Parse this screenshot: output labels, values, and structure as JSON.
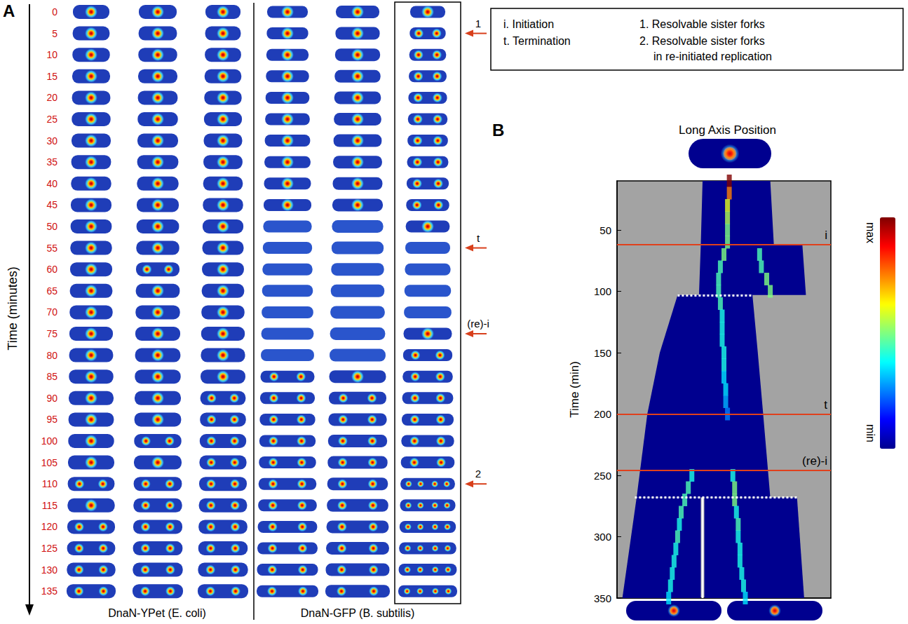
{
  "legend_box": {
    "left": [
      "i. Initiation",
      "t. Termination"
    ],
    "right": [
      "1. Resolvable sister forks",
      "2. Resolvable sister forks in re-initiated replication"
    ]
  },
  "panel_a": {
    "letter": "A",
    "axis_title": "Time (minutes)",
    "times": [
      0,
      5,
      10,
      15,
      20,
      25,
      30,
      35,
      40,
      45,
      50,
      55,
      60,
      65,
      70,
      75,
      80,
      85,
      90,
      95,
      100,
      105,
      110,
      115,
      120,
      125,
      130,
      135
    ],
    "groups": [
      {
        "label": "DnaN-YPet (E. coli)",
        "columns": [
          {
            "foci": [
              1,
              1,
              1,
              1,
              1,
              1,
              1,
              1,
              1,
              1,
              1,
              1,
              1,
              1,
              1,
              1,
              1,
              1,
              1,
              1,
              1,
              1,
              2,
              1,
              2,
              2,
              2,
              2
            ]
          },
          {
            "foci": [
              1,
              1,
              1,
              1,
              1,
              1,
              1,
              1,
              1,
              1,
              1,
              1,
              2,
              1,
              1,
              1,
              1,
              1,
              1,
              1,
              2,
              1,
              2,
              2,
              2,
              2,
              2,
              2
            ]
          },
          {
            "foci": [
              1,
              1,
              1,
              1,
              1,
              1,
              1,
              1,
              1,
              1,
              1,
              1,
              1,
              1,
              1,
              1,
              1,
              1,
              2,
              2,
              2,
              2,
              2,
              2,
              2,
              2,
              2,
              2
            ]
          }
        ]
      },
      {
        "label": "DnaN-GFP (B. subtilis)",
        "columns": [
          {
            "foci": [
              1,
              1,
              1,
              1,
              1,
              1,
              1,
              1,
              1,
              1,
              0,
              0,
              0,
              0,
              0,
              0,
              0,
              2,
              2,
              2,
              2,
              2,
              2,
              2,
              2,
              2,
              2,
              2
            ]
          },
          {
            "foci": [
              1,
              1,
              1,
              1,
              1,
              1,
              1,
              1,
              1,
              1,
              0,
              0,
              0,
              0,
              0,
              0,
              0,
              1,
              2,
              2,
              2,
              2,
              2,
              2,
              2,
              2,
              2,
              2
            ]
          },
          {
            "foci": [
              1,
              2,
              2,
              2,
              2,
              2,
              2,
              2,
              2,
              2,
              1,
              0,
              0,
              0,
              0,
              1,
              2,
              2,
              2,
              2,
              2,
              2,
              4,
              4,
              4,
              4,
              4,
              4
            ]
          }
        ]
      }
    ],
    "annotations": [
      {
        "time": 5,
        "label": "1"
      },
      {
        "time": 55,
        "label": "t"
      },
      {
        "time": 75,
        "label": "(re)-i"
      },
      {
        "time": 110,
        "label": "2"
      }
    ]
  },
  "chart_data": {
    "type": "heatmap",
    "letter": "B",
    "title": "Long Axis Position",
    "y_label": "Time (min)",
    "xlim": [
      0,
      6
    ],
    "xticks": [
      1,
      2,
      3,
      4,
      5
    ],
    "ylim": [
      10,
      350
    ],
    "yticks": [
      50,
      100,
      150,
      200,
      250,
      300,
      350
    ],
    "tick_labels": "y",
    "cells": [
      {
        "time": [
          10,
          62,
          62,
          103
        ],
        "left": [
          2.4,
          2.35,
          2.35,
          2.3
        ],
        "right": [
          4.3,
          4.4,
          5.2,
          5.3
        ]
      },
      {
        "time": [
          103,
          150,
          200,
          268
        ],
        "left": [
          1.7,
          1.2,
          0.85,
          0.55
        ],
        "right": [
          3.8,
          3.95,
          4.1,
          4.3
        ]
      },
      {
        "time": [
          268,
          350
        ],
        "left": [
          0.55,
          0.15
        ],
        "right": [
          2.35,
          2.35
        ]
      },
      {
        "time": [
          268,
          350
        ],
        "left": [
          2.45,
          2.45
        ],
        "right": [
          5.05,
          5.25
        ]
      }
    ],
    "tracks": [
      {
        "time": [
          10,
          20,
          30,
          40,
          50,
          60
        ],
        "position": [
          3.15,
          3.15,
          3.1,
          3.1,
          3.1,
          3.1
        ],
        "intensity": [
          1.0,
          0.75,
          0.6,
          0.55,
          0.5,
          0.5
        ]
      },
      {
        "time": [
          70,
          80,
          90,
          100,
          110,
          120,
          130,
          140,
          150,
          160,
          170,
          180,
          190,
          200
        ],
        "position": [
          3.0,
          2.9,
          2.85,
          2.85,
          2.9,
          2.95,
          2.95,
          2.95,
          3.0,
          3.0,
          3.0,
          3.05,
          3.05,
          3.1
        ],
        "intensity": [
          0.5,
          0.45,
          0.45,
          0.45,
          0.45,
          0.4,
          0.4,
          0.4,
          0.4,
          0.4,
          0.35,
          0.35,
          0.3,
          0.25
        ]
      },
      {
        "time": [
          70,
          80,
          90,
          100
        ],
        "position": [
          4.0,
          4.05,
          4.2,
          4.3
        ],
        "intensity": [
          0.45,
          0.45,
          0.5,
          0.5
        ]
      },
      {
        "time": [
          250,
          260,
          270,
          280,
          290,
          300,
          310,
          320,
          330,
          340,
          350
        ],
        "position": [
          2.1,
          2.0,
          1.9,
          1.8,
          1.75,
          1.7,
          1.65,
          1.6,
          1.55,
          1.5,
          1.45
        ],
        "intensity": [
          0.4,
          0.45,
          0.45,
          0.45,
          0.4,
          0.45,
          0.4,
          0.4,
          0.4,
          0.4,
          0.35
        ]
      },
      {
        "time": [
          250,
          260,
          270,
          280,
          290,
          300,
          310,
          320,
          330,
          340,
          350
        ],
        "position": [
          3.25,
          3.3,
          3.3,
          3.35,
          3.4,
          3.4,
          3.45,
          3.45,
          3.5,
          3.55,
          3.6
        ],
        "intensity": [
          0.4,
          0.5,
          0.5,
          0.4,
          0.45,
          0.4,
          0.4,
          0.4,
          0.4,
          0.4,
          0.35
        ]
      }
    ],
    "events": {
      "color": "#e0401c",
      "values": [
        62,
        200,
        246
      ],
      "labels": [
        "i",
        "t",
        "(re)-i"
      ]
    },
    "divisions": [
      {
        "time": 103,
        "x": [
          1.7,
          3.8
        ]
      },
      {
        "time": 268,
        "x": [
          0.5,
          5.05
        ]
      }
    ],
    "septum": {
      "x": 2.4,
      "time": [
        268,
        350
      ]
    },
    "colorbar": {
      "range": [
        0,
        1
      ],
      "ticks": [
        {
          "value": 0,
          "label": "min"
        },
        {
          "value": 1,
          "label": "max"
        }
      ],
      "colors": [
        "#00008f",
        "#0000ff",
        "#0080ff",
        "#00ffff",
        "#80ff80",
        "#ffff00",
        "#ff8000",
        "#ff0000",
        "#800000"
      ]
    }
  }
}
